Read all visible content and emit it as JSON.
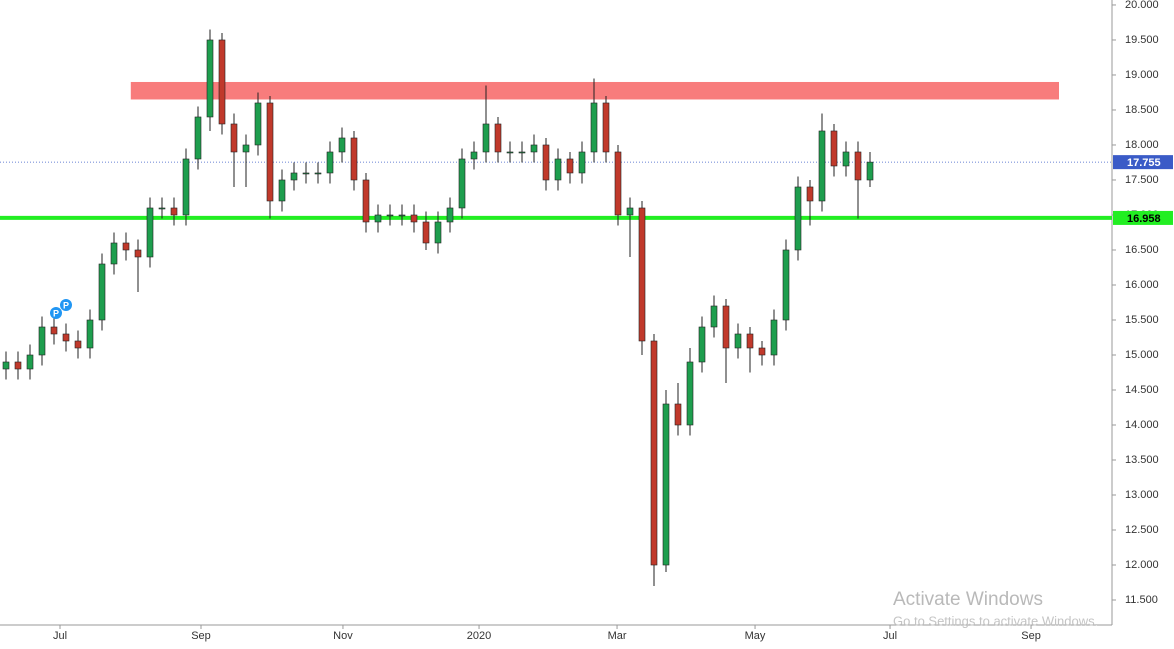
{
  "chart_data": {
    "type": "candlestick",
    "open": [
      14.8,
      14.9,
      14.8,
      15.0,
      15.4,
      15.3,
      15.2,
      15.1,
      15.5,
      16.3,
      16.6,
      16.5,
      16.4,
      17.1,
      17.1,
      17.0,
      17.8,
      18.4,
      19.5,
      18.3,
      17.9,
      18.0,
      18.6,
      17.2,
      17.5,
      17.6,
      17.6,
      17.6,
      17.9,
      18.1,
      17.5,
      16.9,
      17.0,
      17.0,
      17.0,
      16.9,
      16.6,
      16.9,
      17.1,
      17.8,
      17.9,
      18.3,
      17.9,
      17.9,
      17.9,
      18.0,
      17.5,
      17.8,
      17.6,
      17.9,
      18.6,
      17.9,
      17.0,
      17.1,
      15.2,
      12.0,
      14.3,
      14.0,
      14.9,
      15.4,
      15.7,
      15.1,
      15.3,
      15.1,
      15.0,
      15.5,
      16.5,
      17.4,
      17.2,
      18.2,
      17.7,
      17.9,
      17.5
    ],
    "high": [
      15.05,
      15.05,
      15.15,
      15.55,
      15.55,
      15.45,
      15.35,
      15.65,
      16.45,
      16.75,
      16.75,
      16.65,
      17.25,
      17.25,
      17.25,
      17.95,
      18.55,
      19.65,
      19.6,
      18.45,
      18.15,
      18.75,
      18.7,
      17.65,
      17.75,
      17.75,
      17.75,
      18.05,
      18.25,
      18.2,
      17.6,
      17.15,
      17.15,
      17.15,
      17.15,
      17.05,
      17.05,
      17.25,
      17.95,
      18.05,
      18.85,
      18.4,
      18.05,
      18.05,
      18.15,
      18.1,
      17.95,
      17.9,
      18.05,
      18.95,
      18.7,
      18.0,
      17.25,
      17.2,
      15.3,
      14.5,
      14.6,
      15.1,
      15.55,
      15.85,
      15.8,
      15.45,
      15.4,
      15.2,
      15.65,
      16.65,
      17.55,
      17.5,
      18.45,
      18.3,
      18.05,
      18.05,
      17.9
    ],
    "low": [
      14.65,
      14.65,
      14.65,
      14.85,
      15.15,
      15.05,
      14.95,
      14.95,
      15.35,
      16.15,
      16.35,
      15.9,
      16.25,
      16.95,
      16.85,
      16.85,
      17.65,
      18.2,
      18.15,
      17.4,
      17.4,
      17.85,
      16.95,
      17.05,
      17.35,
      17.45,
      17.45,
      17.45,
      17.75,
      17.35,
      16.75,
      16.75,
      16.85,
      16.85,
      16.75,
      16.5,
      16.45,
      16.75,
      16.95,
      17.65,
      17.75,
      17.75,
      17.75,
      17.75,
      17.75,
      17.35,
      17.35,
      17.45,
      17.45,
      17.75,
      17.75,
      16.85,
      16.4,
      15.0,
      11.7,
      11.9,
      13.85,
      13.85,
      14.75,
      15.25,
      14.6,
      14.95,
      14.75,
      14.85,
      14.85,
      15.35,
      16.35,
      16.85,
      17.05,
      17.55,
      17.55,
      16.95,
      17.4
    ],
    "close": [
      14.9,
      14.8,
      15.0,
      15.4,
      15.3,
      15.2,
      15.1,
      15.5,
      16.3,
      16.6,
      16.5,
      16.4,
      17.1,
      17.1,
      17.0,
      17.8,
      18.4,
      19.5,
      18.3,
      17.9,
      18.0,
      18.6,
      17.2,
      17.5,
      17.6,
      17.6,
      17.6,
      17.9,
      18.1,
      17.5,
      16.9,
      17.0,
      17.0,
      17.0,
      16.9,
      16.6,
      16.9,
      17.1,
      17.8,
      17.9,
      18.3,
      17.9,
      17.9,
      17.9,
      18.0,
      17.5,
      17.8,
      17.6,
      17.9,
      18.6,
      17.9,
      17.0,
      17.1,
      15.2,
      12.0,
      14.3,
      14.0,
      14.9,
      15.4,
      15.7,
      15.1,
      15.3,
      15.1,
      15.0,
      15.5,
      16.5,
      17.4,
      17.2,
      18.2,
      17.7,
      17.9,
      17.5,
      17.755
    ],
    "up_color": "#1e9e4e",
    "down_color": "#c0392b",
    "xlim": [
      -0.5,
      92.0
    ],
    "xticks": [
      {
        "value": 4.5,
        "label": "Jul"
      },
      {
        "value": 16.25,
        "label": "Sep"
      },
      {
        "value": 28.08,
        "label": "Nov"
      },
      {
        "value": 39.42,
        "label": "2020"
      },
      {
        "value": 50.92,
        "label": "Mar"
      },
      {
        "value": 62.42,
        "label": "May"
      },
      {
        "value": 73.67,
        "label": "Jul"
      },
      {
        "value": 85.42,
        "label": "Sep"
      }
    ],
    "ylim": [
      11.143,
      20.071
    ],
    "yticks": [
      {
        "value": 11.5,
        "label": "11.500"
      },
      {
        "value": 12.0,
        "label": "12.000"
      },
      {
        "value": 12.5,
        "label": "12.500"
      },
      {
        "value": 13.0,
        "label": "13.000"
      },
      {
        "value": 13.5,
        "label": "13.500"
      },
      {
        "value": 14.0,
        "label": "14.000"
      },
      {
        "value": 14.5,
        "label": "14.500"
      },
      {
        "value": 15.0,
        "label": "15.000"
      },
      {
        "value": 15.5,
        "label": "15.500"
      },
      {
        "value": 16.0,
        "label": "16.000"
      },
      {
        "value": 16.5,
        "label": "16.500"
      },
      {
        "value": 17.0,
        "label": "17.000"
      },
      {
        "value": 17.5,
        "label": "17.500"
      },
      {
        "value": 18.0,
        "label": "18.000"
      },
      {
        "value": 18.5,
        "label": "18.500"
      },
      {
        "value": 19.0,
        "label": "19.000"
      },
      {
        "value": 19.5,
        "label": "19.500"
      },
      {
        "value": 20.0,
        "label": "20.000"
      }
    ],
    "zone": {
      "low": 18.65,
      "high": 18.9,
      "x": [
        10.4,
        87.75
      ],
      "color": "#f87c7c"
    },
    "support": {
      "value": 16.958,
      "color": "#22ee22"
    },
    "last_price": {
      "value": 17.755,
      "color": "#3a5bc7"
    },
    "event_labels": [
      "P",
      "P"
    ],
    "watermark": [
      "Activate Windows",
      "Go to Settings to activate Windows."
    ]
  }
}
